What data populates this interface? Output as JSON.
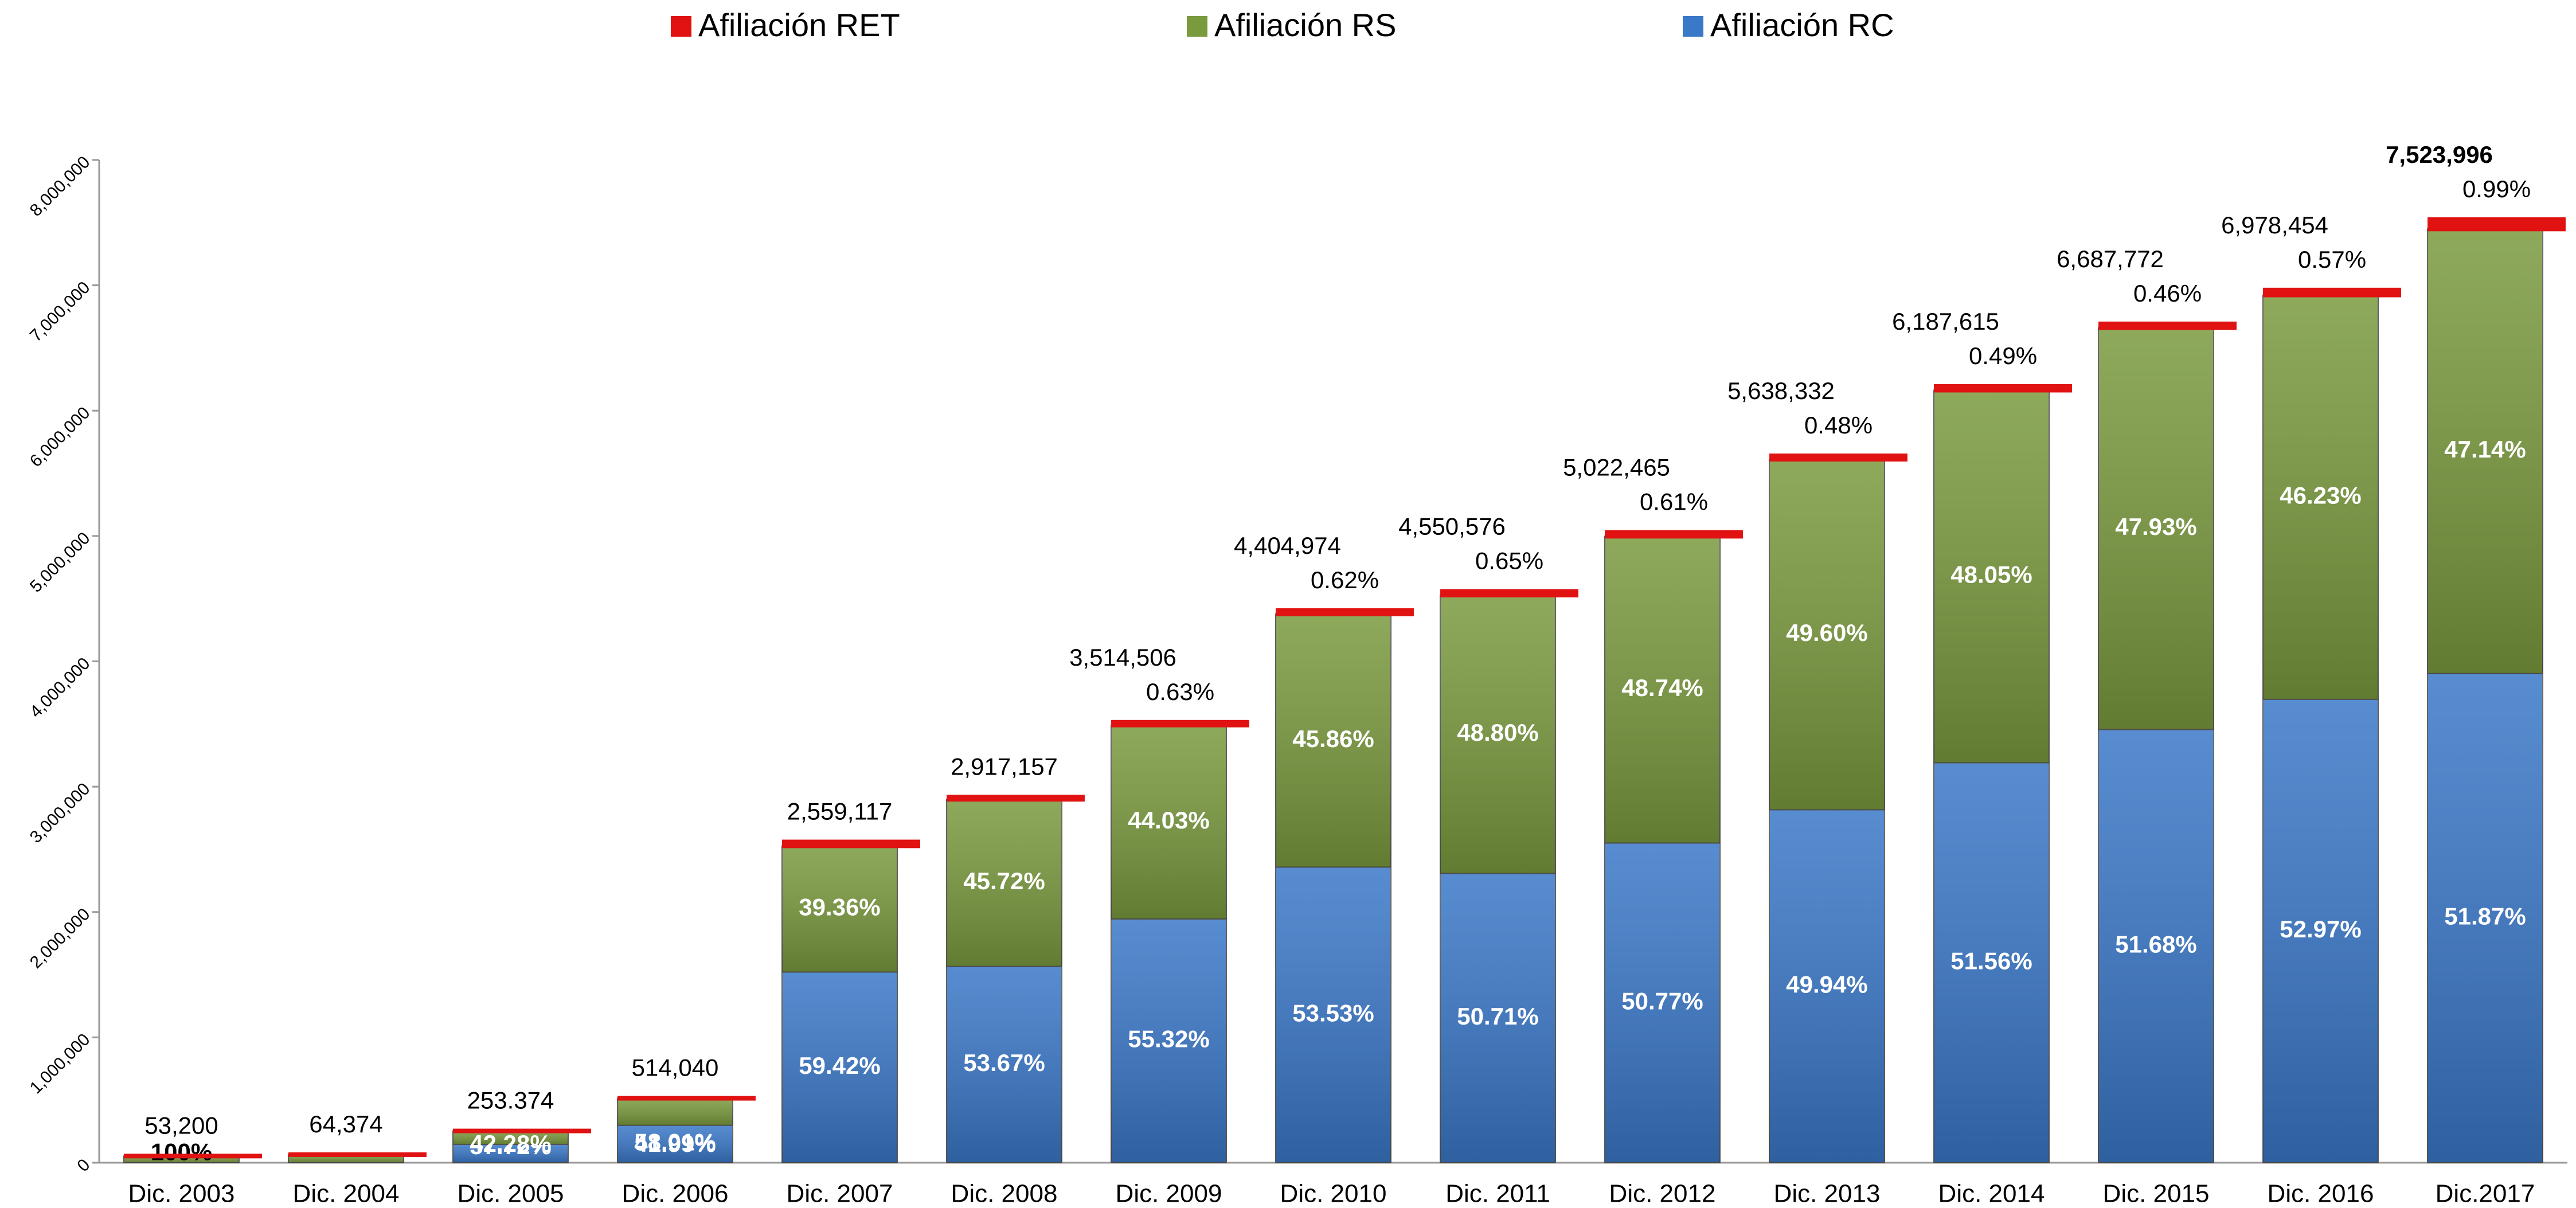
{
  "chart_data": {
    "type": "stacked_bar",
    "categories": [
      "Dic. 2003",
      "Dic. 2004",
      "Dic. 2005",
      "Dic. 2006",
      "Dic. 2007",
      "Dic. 2008",
      "Dic. 2009",
      "Dic. 2010",
      "Dic. 2011",
      "Dic. 2012",
      "Dic. 2013",
      "Dic. 2014",
      "Dic. 2015",
      "Dic. 2016",
      "Dic.2017"
    ],
    "series": [
      {
        "name": "Afiliación RC",
        "color": "#3a78c8",
        "values": [
          0,
          0,
          146248,
          298195,
          1520627,
          1565638,
          1944225,
          2357983,
          2307597,
          2549906,
          2815783,
          3190334,
          3456241,
          3696487,
          3902697
        ],
        "value_labels": [
          null,
          null,
          "57.72%",
          "58.01%",
          "59.42%",
          "53.67%",
          "55.32%",
          "53.53%",
          "50.71%",
          "50.77%",
          "49.94%",
          "51.56%",
          "51.68%",
          "52.97%",
          "51.87%"
        ]
      },
      {
        "name": "Afiliación RS",
        "color": "#7a9a3e",
        "values": [
          53200,
          64374,
          107126,
          215845,
          1007268,
          1333724,
          1547437,
          2020121,
          2220681,
          2447950,
          2796613,
          2973149,
          3205449,
          3226139,
          3546812
        ],
        "value_labels": [
          "100%",
          null,
          "42.28%",
          "41.99%",
          "39.36%",
          "45.72%",
          "44.03%",
          "45.86%",
          "48.80%",
          "48.74%",
          "49.60%",
          "48.05%",
          "47.93%",
          "46.23%",
          "47.14%"
        ]
      },
      {
        "name": "Afiliación RET",
        "color": "#e01212",
        "values": [
          0,
          0,
          0,
          0,
          31221,
          17795,
          22141,
          27311,
          29579,
          30637,
          27064,
          30319,
          30764,
          39777,
          74488
        ],
        "value_labels": [
          null,
          null,
          null,
          null,
          null,
          null,
          "0.63%",
          "0.62%",
          "0.65%",
          "0.61%",
          "0.48%",
          "0.49%",
          "0.46%",
          "0.57%",
          "0.99%"
        ]
      }
    ],
    "totals": [
      {
        "value": 53200,
        "label": "53,200"
      },
      {
        "value": 64374,
        "label": "64,374"
      },
      {
        "value": 253374,
        "label": "253.374"
      },
      {
        "value": 514040,
        "label": "514,040"
      },
      {
        "value": 2559117,
        "label": "2,559,117"
      },
      {
        "value": 2917157,
        "label": "2,917,157"
      },
      {
        "value": 3514506,
        "label": "3,514,506"
      },
      {
        "value": 4404974,
        "label": "4,404,974"
      },
      {
        "value": 4550576,
        "label": "4,550,576"
      },
      {
        "value": 5022465,
        "label": "5,022,465"
      },
      {
        "value": 5638332,
        "label": "5,638,332"
      },
      {
        "value": 6187615,
        "label": "6,187,615"
      },
      {
        "value": 6687772,
        "label": "6,687,772"
      },
      {
        "value": 6978454,
        "label": "6,978,454"
      },
      {
        "value": 7523996,
        "label": "7,523,996"
      }
    ],
    "ylim": [
      0,
      8000000
    ],
    "yticks": [
      0,
      {
        "value": 1000000,
        "label": "1,000,000"
      },
      {
        "value": 2000000,
        "label": "2,000,000"
      },
      {
        "value": 3000000,
        "label": "3,000,000"
      },
      {
        "value": 4000000,
        "label": "4,000,000"
      },
      {
        "value": 5000000,
        "label": "5,000,000"
      },
      {
        "value": 6000000,
        "label": "6,000,000"
      },
      {
        "value": 7000000,
        "label": "7,000,000"
      },
      {
        "value": 8000000,
        "label": "8,000,000"
      }
    ],
    "grid": false,
    "legend": "top"
  }
}
